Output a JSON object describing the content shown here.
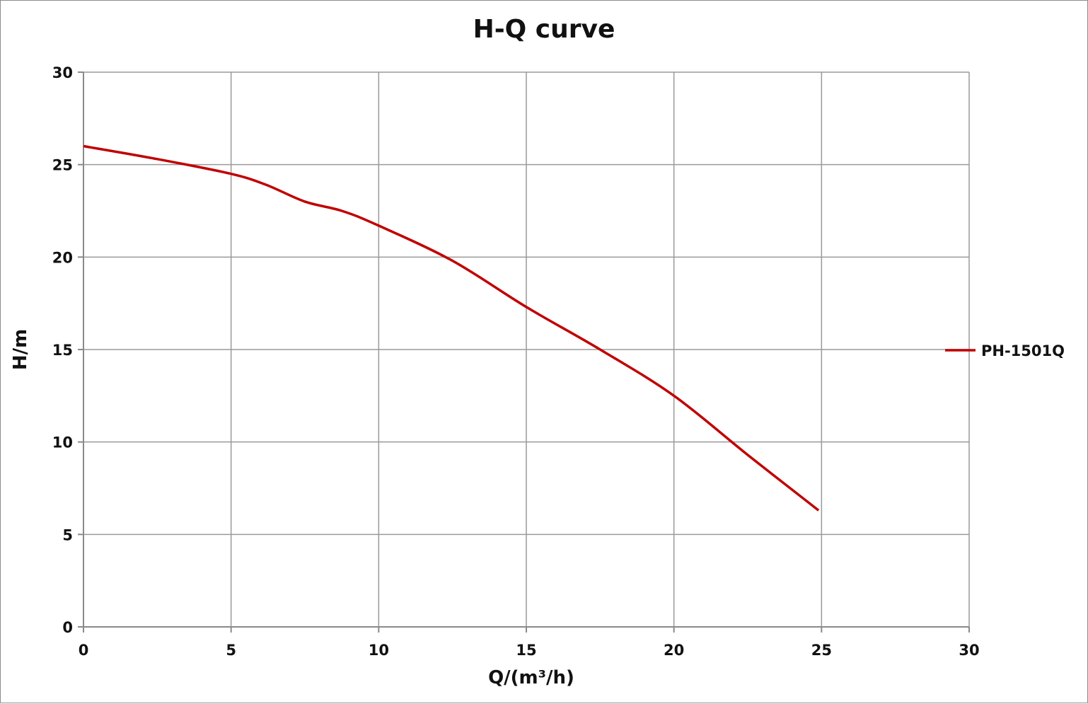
{
  "chart_data": {
    "type": "line",
    "title": "H-Q  curve",
    "xlabel": "Q/(m³/h)",
    "ylabel": "H/m",
    "xlim": [
      0,
      30
    ],
    "ylim": [
      0,
      30
    ],
    "x_ticks": [
      "0",
      "5",
      "10",
      "15",
      "20",
      "25",
      "30"
    ],
    "y_ticks": [
      "0",
      "5",
      "10",
      "15",
      "20",
      "25",
      "30"
    ],
    "grid": true,
    "legend_position": "right",
    "series": [
      {
        "name": "PH-1501Q",
        "color": "#c00000",
        "x": [
          0,
          2.5,
          5,
          6.2,
          7.5,
          8.75,
          10,
          12.5,
          15,
          17.5,
          20,
          22.5,
          24.9
        ],
        "y": [
          26.0,
          25.3,
          24.5,
          23.9,
          23.0,
          22.5,
          21.7,
          19.8,
          17.3,
          15.0,
          12.5,
          9.3,
          6.3
        ]
      }
    ]
  }
}
